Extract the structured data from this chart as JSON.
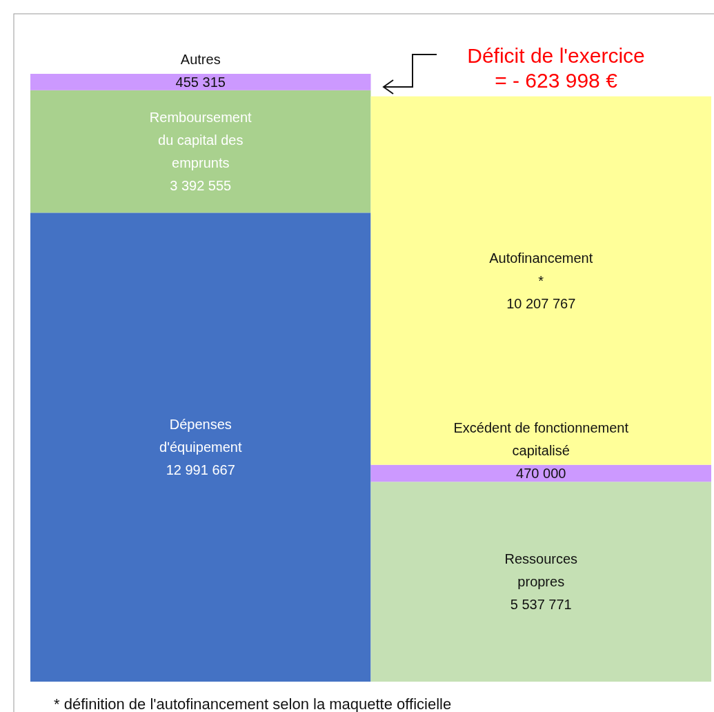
{
  "chart_data": {
    "type": "bar",
    "stacked": true,
    "categories": [
      null,
      null
    ],
    "series": [
      {
        "name": "Dépenses d'équipement",
        "color": "#4472c4",
        "values": [
          12991667,
          null
        ],
        "value_labels": [
          "12 991 667",
          null
        ]
      },
      {
        "name": "Remboursement du capital des emprunts",
        "color": "#a9d18e",
        "values": [
          3392555,
          null
        ],
        "value_labels": [
          "3 392 555",
          null
        ]
      },
      {
        "name": "Autres",
        "color": "#cc99ff",
        "values": [
          455315,
          null
        ],
        "value_labels": [
          "455 315",
          null
        ]
      },
      {
        "name": "Ressources propres",
        "color": "#c5e0b4",
        "values": [
          null,
          5537771
        ],
        "value_labels": [
          null,
          "5 537 771"
        ]
      },
      {
        "name": "Excédent de fonctionnement capitalisé",
        "color": "#cc99ff",
        "values": [
          null,
          470000
        ],
        "value_labels": [
          null,
          "470 000"
        ]
      },
      {
        "name": "Autofinancement *",
        "color": "#ffff99",
        "values": [
          null,
          10207767
        ],
        "value_labels": [
          null,
          "10 207 767"
        ]
      }
    ],
    "annotations": [
      "Déficit de l'exercice = - 623 998 €",
      "* définition de l'autofinancement selon la maquette officielle"
    ]
  }
}
